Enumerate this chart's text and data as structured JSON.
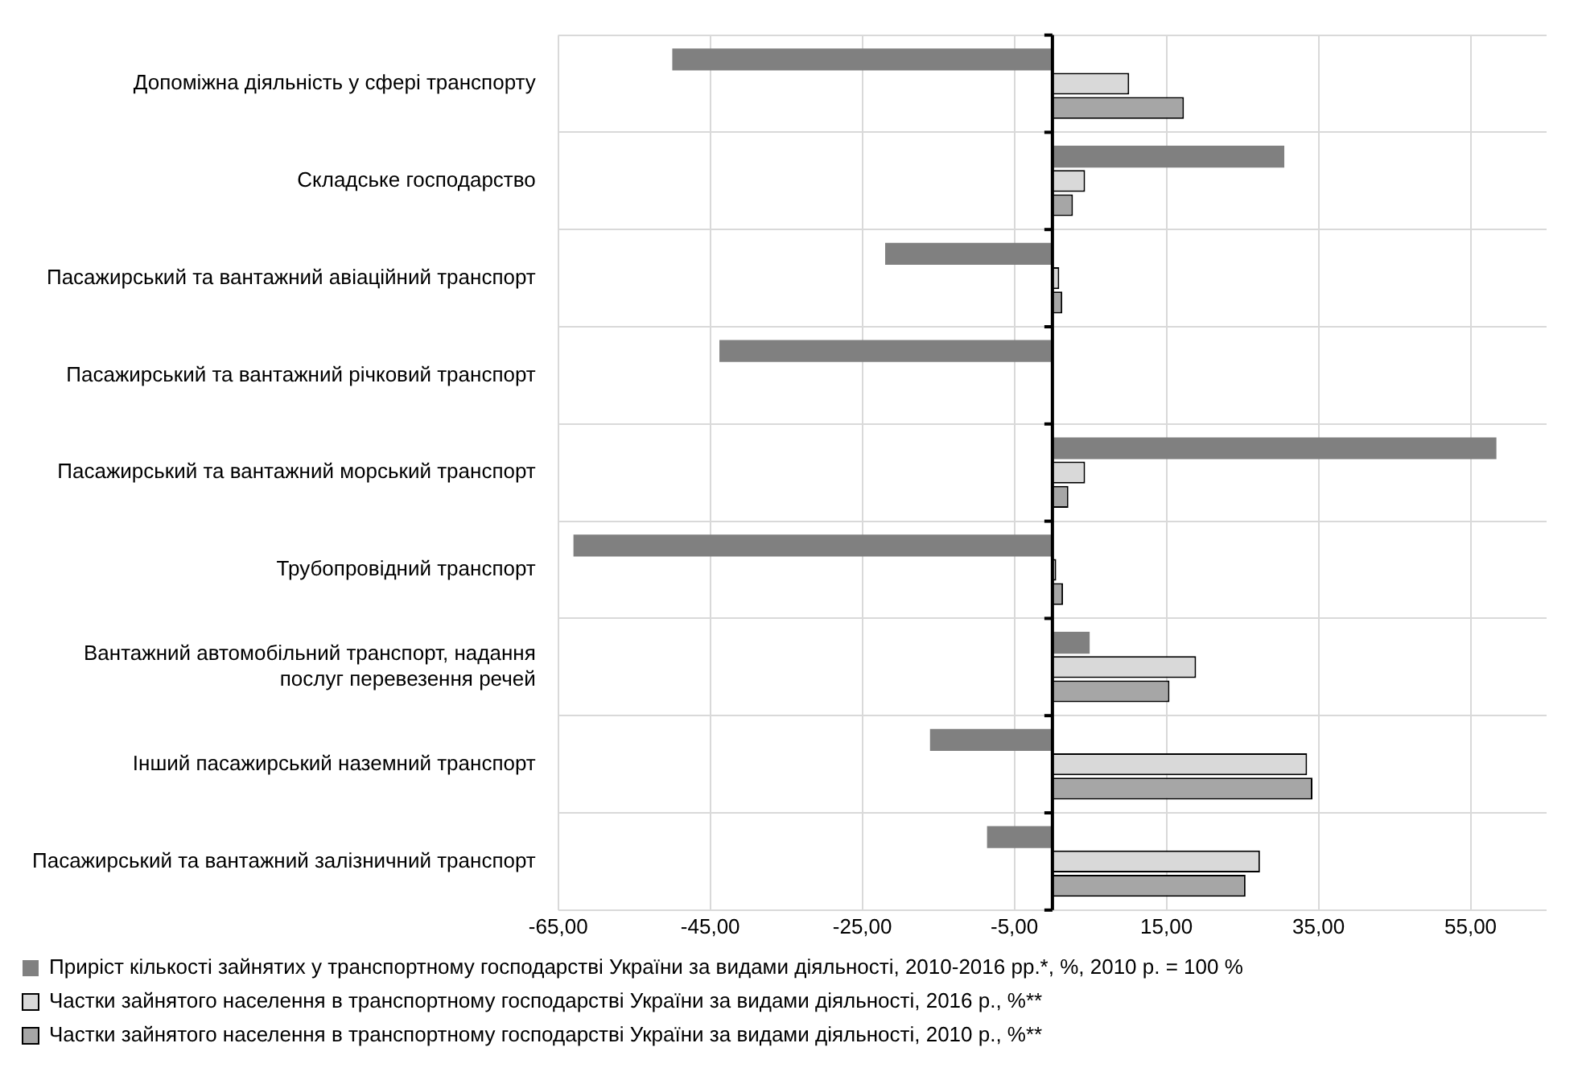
{
  "chart_data": {
    "type": "bar",
    "orientation": "horizontal",
    "categories": [
      "Допоміжна діяльність у сфері транспорту",
      "Складське господарство",
      "Пасажирський та вантажний авіаційний транспорт",
      "Пасажирський та вантажний річковий транспорт",
      "Пасажирський та вантажний морський транспорт",
      "Трубопровідний транспорт",
      "Вантажний автомобільний транспорт, надання послуг перевезення речей",
      "Інший пасажирський наземний транспорт",
      "Пасажирський та вантажний залізничний транспорт"
    ],
    "series": [
      {
        "name": "Приріст кількості зайнятих у транспортному господарстві України за видами діяльності, 2010-2016 рр.*, %, 2010 р. = 100 %",
        "color": "#808080",
        "values": [
          -50.0,
          30.5,
          -22.0,
          -43.8,
          58.4,
          -63.0,
          4.9,
          -16.1,
          -8.6
        ]
      },
      {
        "name": "Частки зайнятого населення в транспортному господарстві України за видами діяльності, 2016 р., %**",
        "color": "#d9d9d9",
        "values": [
          10.1,
          4.3,
          0.9,
          null,
          4.3,
          0.5,
          18.9,
          33.5,
          27.3
        ]
      },
      {
        "name": "Частки зайнятого населення в транспортному господарстві України за видами діяльності, 2010 р., %**",
        "color": "#a6a6a6",
        "values": [
          17.3,
          2.7,
          1.3,
          null,
          2.1,
          1.4,
          15.4,
          34.2,
          25.4
        ]
      }
    ],
    "xlim": [
      -65,
      65
    ],
    "xticks": [
      {
        "value": -65,
        "label": "-65,00"
      },
      {
        "value": -45,
        "label": "-45,00"
      },
      {
        "value": -25,
        "label": "-25,00"
      },
      {
        "value": -5,
        "label": "-5,00"
      },
      {
        "value": 15,
        "label": "15,00"
      },
      {
        "value": 35,
        "label": "35,00"
      },
      {
        "value": 55,
        "label": "55,00"
      }
    ],
    "grid": true,
    "legend": "bottom"
  }
}
